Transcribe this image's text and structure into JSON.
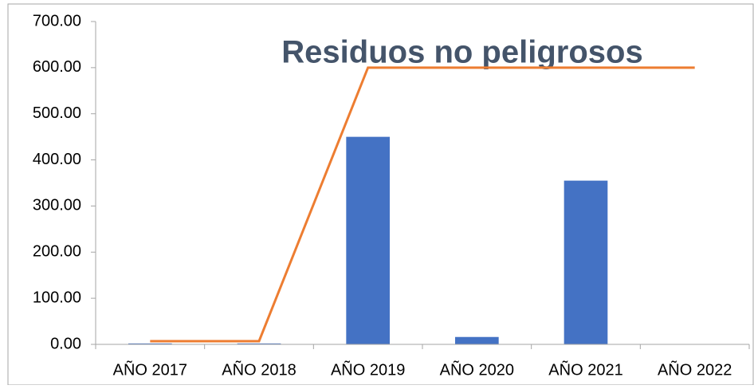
{
  "chart_data": {
    "type": "bar",
    "title": "Residuos no peligrosos",
    "categories": [
      "AÑO 2017",
      "AÑO 2018",
      "AÑO 2019",
      "AÑO 2020",
      "AÑO 2021",
      "AÑO 2022"
    ],
    "series": [
      {
        "type": "bar",
        "color": "#4472c4",
        "values": [
          2,
          2,
          450,
          16,
          355,
          0
        ]
      },
      {
        "type": "line",
        "color": "#ed7d31",
        "values": [
          7,
          7,
          600,
          600,
          600,
          600
        ]
      }
    ],
    "ylim": [
      0,
      700
    ],
    "yticks": [
      {
        "value": 0,
        "label": "0.00"
      },
      {
        "value": 100,
        "label": "100.00"
      },
      {
        "value": 200,
        "label": "200.00"
      },
      {
        "value": 300,
        "label": "300.00"
      },
      {
        "value": 400,
        "label": "400.00"
      },
      {
        "value": 500,
        "label": "500.00"
      },
      {
        "value": 600,
        "label": "600.00"
      },
      {
        "value": 700,
        "label": "700.00"
      }
    ],
    "grid": false
  }
}
